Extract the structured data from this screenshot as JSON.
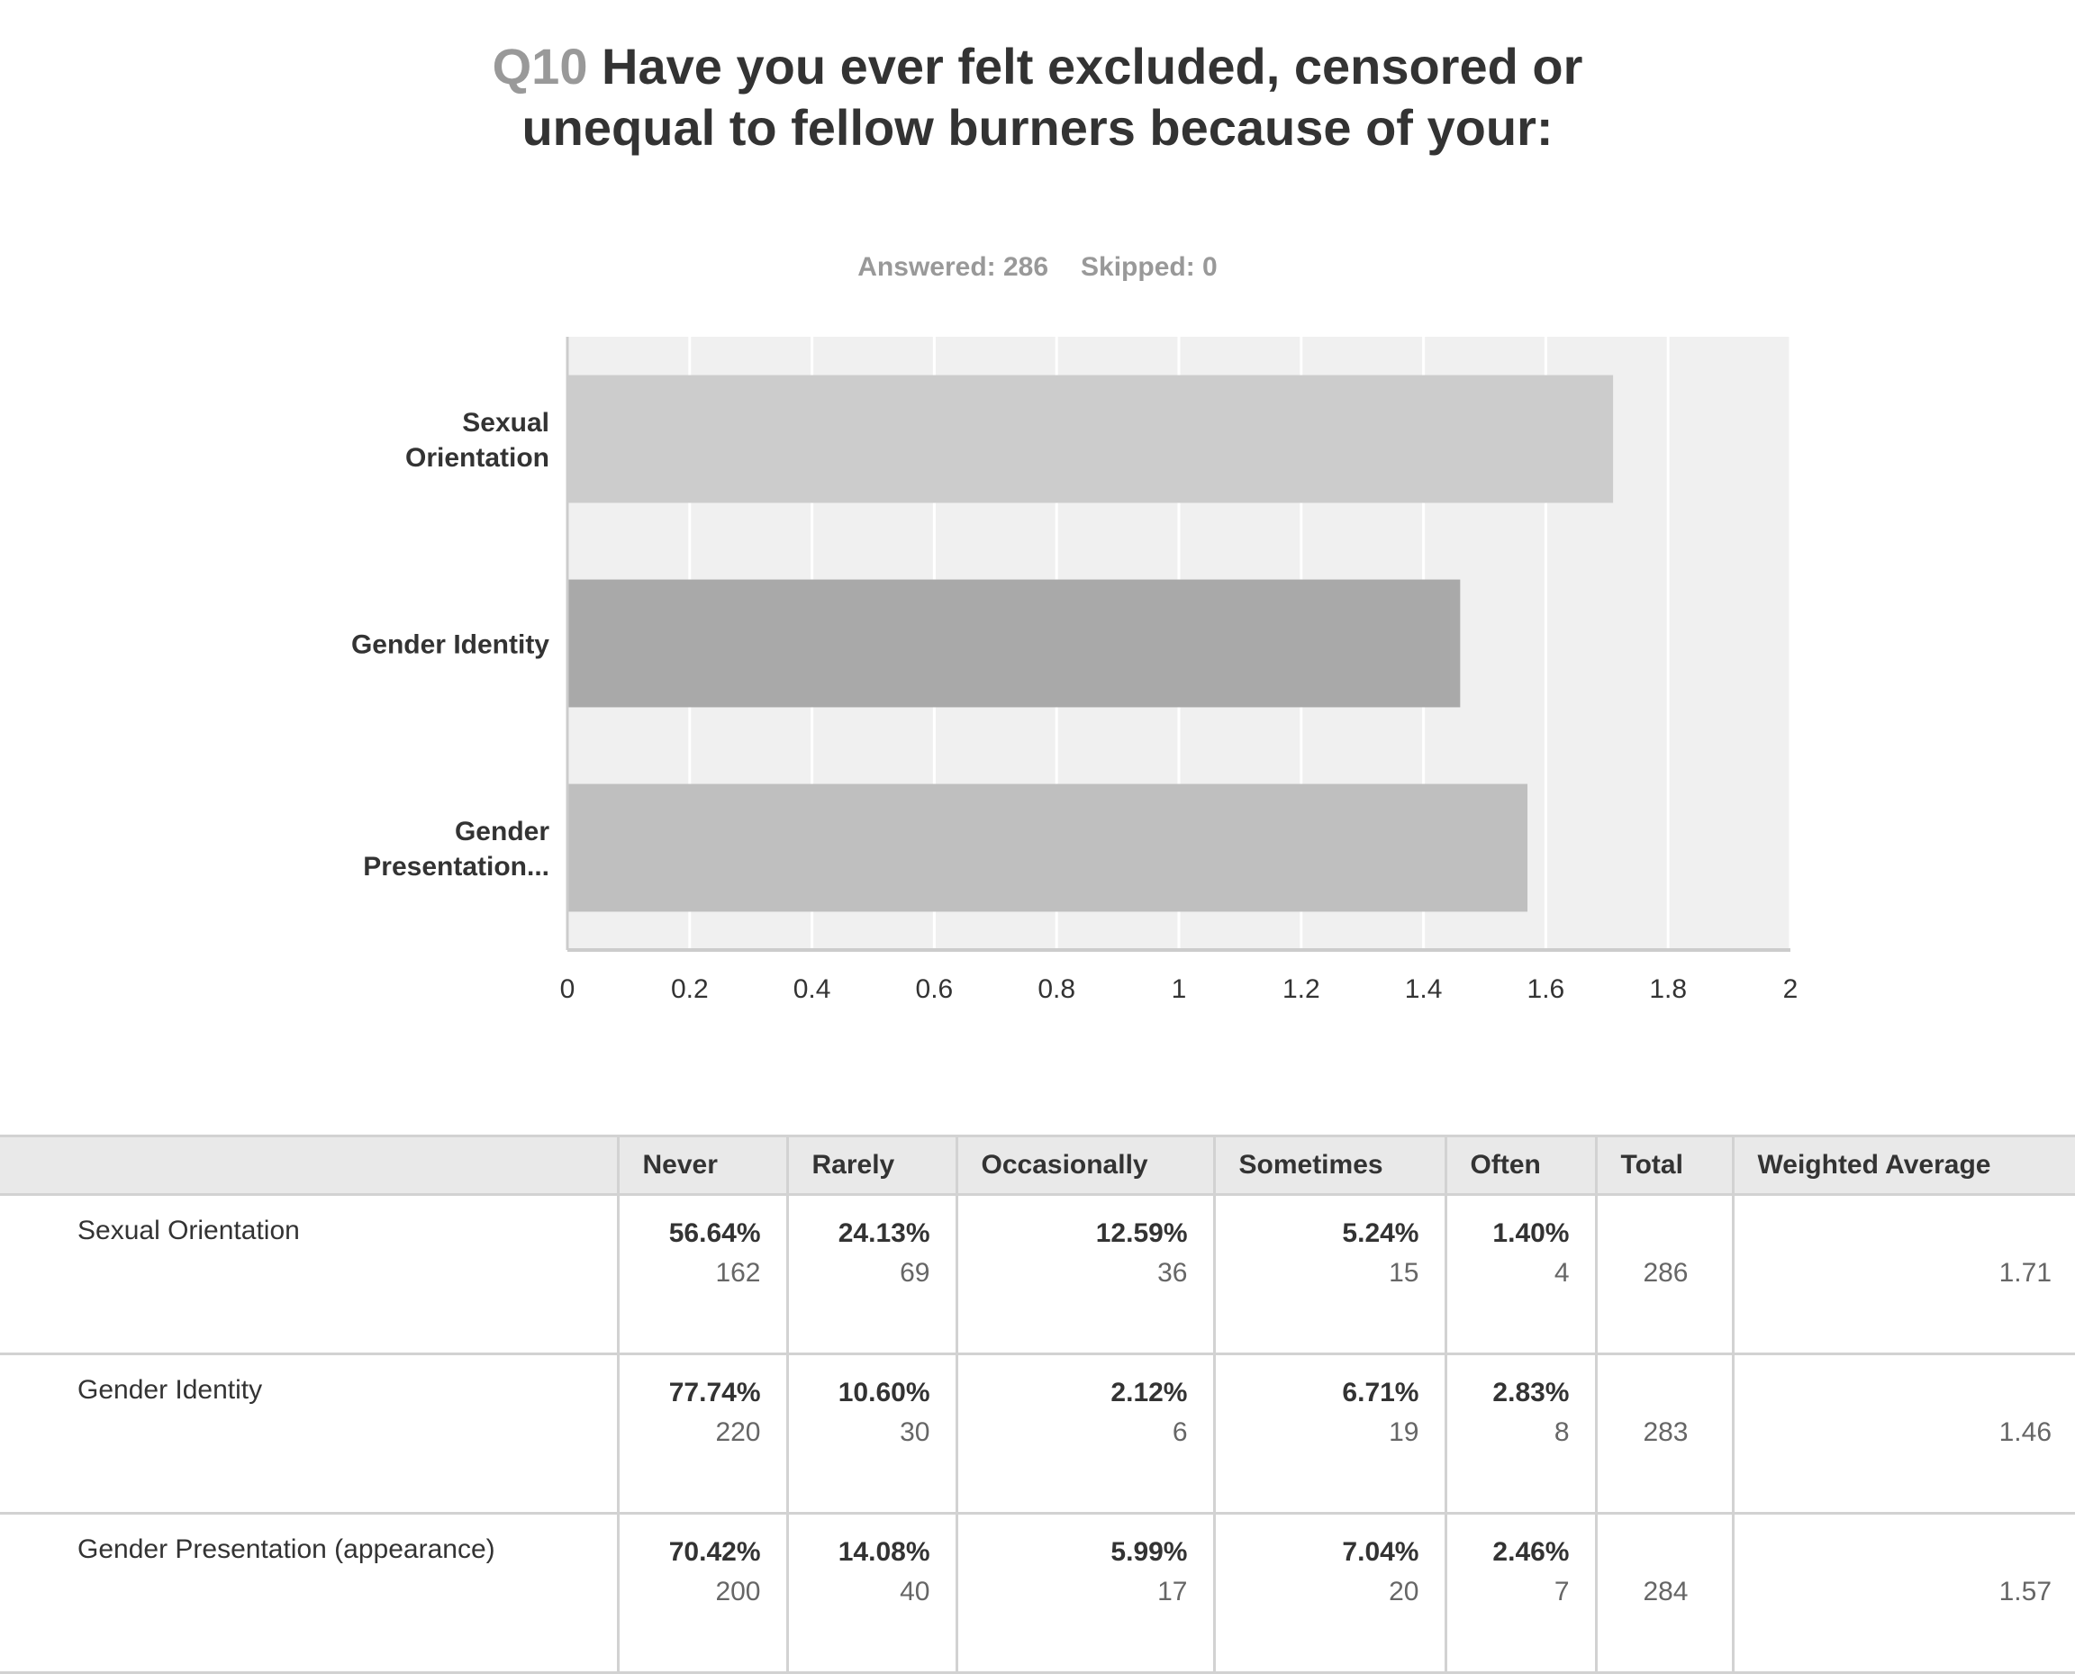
{
  "question": {
    "number": "Q10",
    "text": "Have you ever felt excluded, censored or unequal to fellow burners because of your:"
  },
  "stats": {
    "answered": "Answered: 286",
    "skipped": "Skipped: 0"
  },
  "chart_data": {
    "type": "bar",
    "orientation": "horizontal",
    "categories": [
      [
        "Sexual",
        "Orientation"
      ],
      [
        "Gender Identity"
      ],
      [
        "Gender",
        "Presentation..."
      ]
    ],
    "values": [
      1.71,
      1.46,
      1.57
    ],
    "colors": [
      "#cccccc",
      "#a9a9a9",
      "#bfbfbf"
    ],
    "xlim": [
      0,
      2
    ],
    "xticks": [
      "0",
      "0.2",
      "0.4",
      "0.6",
      "0.8",
      "1",
      "1.2",
      "1.4",
      "1.6",
      "1.8",
      "2"
    ],
    "grid": true
  },
  "table": {
    "headers": [
      "",
      "Never",
      "Rarely",
      "Occasionally",
      "Sometimes",
      "Often",
      "Total",
      "Weighted Average"
    ],
    "rows": [
      {
        "label": "Sexual Orientation",
        "cells": [
          {
            "pct": "56.64%",
            "count": "162"
          },
          {
            "pct": "24.13%",
            "count": "69"
          },
          {
            "pct": "12.59%",
            "count": "36"
          },
          {
            "pct": "5.24%",
            "count": "15"
          },
          {
            "pct": "1.40%",
            "count": "4"
          }
        ],
        "total": "286",
        "weighted_average": "1.71"
      },
      {
        "label": "Gender Identity",
        "cells": [
          {
            "pct": "77.74%",
            "count": "220"
          },
          {
            "pct": "10.60%",
            "count": "30"
          },
          {
            "pct": "2.12%",
            "count": "6"
          },
          {
            "pct": "6.71%",
            "count": "19"
          },
          {
            "pct": "2.83%",
            "count": "8"
          }
        ],
        "total": "283",
        "weighted_average": "1.46"
      },
      {
        "label": "Gender Presentation (appearance)",
        "cells": [
          {
            "pct": "70.42%",
            "count": "200"
          },
          {
            "pct": "14.08%",
            "count": "40"
          },
          {
            "pct": "5.99%",
            "count": "17"
          },
          {
            "pct": "7.04%",
            "count": "20"
          },
          {
            "pct": "2.46%",
            "count": "7"
          }
        ],
        "total": "284",
        "weighted_average": "1.57"
      }
    ]
  }
}
